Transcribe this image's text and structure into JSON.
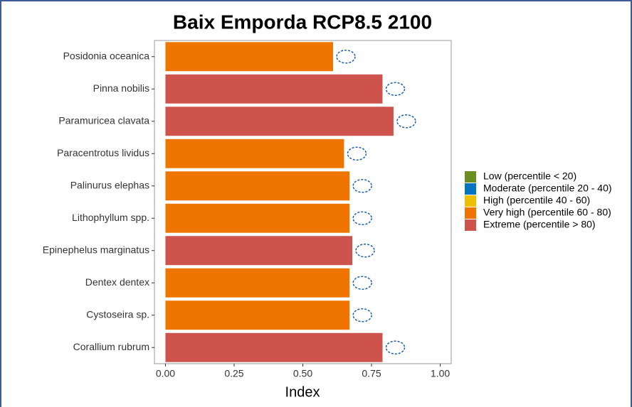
{
  "chart_data": {
    "type": "hbar",
    "title": "Baix Emporda RCP8.5 2100",
    "x_label": "Index",
    "categories": [
      "Posidonia oceanica",
      "Pinna nobilis",
      "Paramuricea clavata",
      "Paracentrotus lividus",
      "Palinurus elephas",
      "Lithophyllum spp.",
      "Epinephelus marginatus",
      "Dentex dentex",
      "Cystoseira sp.",
      "Corallium rubrum"
    ],
    "values": [
      0.61,
      0.79,
      0.83,
      0.65,
      0.67,
      0.67,
      0.68,
      0.67,
      0.67,
      0.79
    ],
    "colors": [
      "#ee7600",
      "#cd534c",
      "#cd534c",
      "#ee7600",
      "#ee7600",
      "#ee7600",
      "#cd534c",
      "#ee7600",
      "#ee7600",
      "#cd534c"
    ],
    "xlim": [
      -0.04,
      1.04
    ],
    "xticks": [
      {
        "value": 0,
        "label": "0.00"
      },
      {
        "value": 0.25,
        "label": "0.25"
      },
      {
        "value": 0.5,
        "label": "0.50"
      },
      {
        "value": 0.75,
        "label": "0.75"
      },
      {
        "value": 1,
        "label": "1.00"
      }
    ],
    "legend_position": "right",
    "legend": [
      {
        "name": "Low (percentile < 20)",
        "color": "#6b8e23"
      },
      {
        "name": "Moderate (percentile 20 - 40)",
        "color": "#0073c2"
      },
      {
        "name": "High (percentile 40 - 60)",
        "color": "#efc000"
      },
      {
        "name": "Very high (percentile 60 - 80)",
        "color": "#ee7600"
      },
      {
        "name": "Extreme (percentile > 80)",
        "color": "#cd534c"
      }
    ]
  }
}
